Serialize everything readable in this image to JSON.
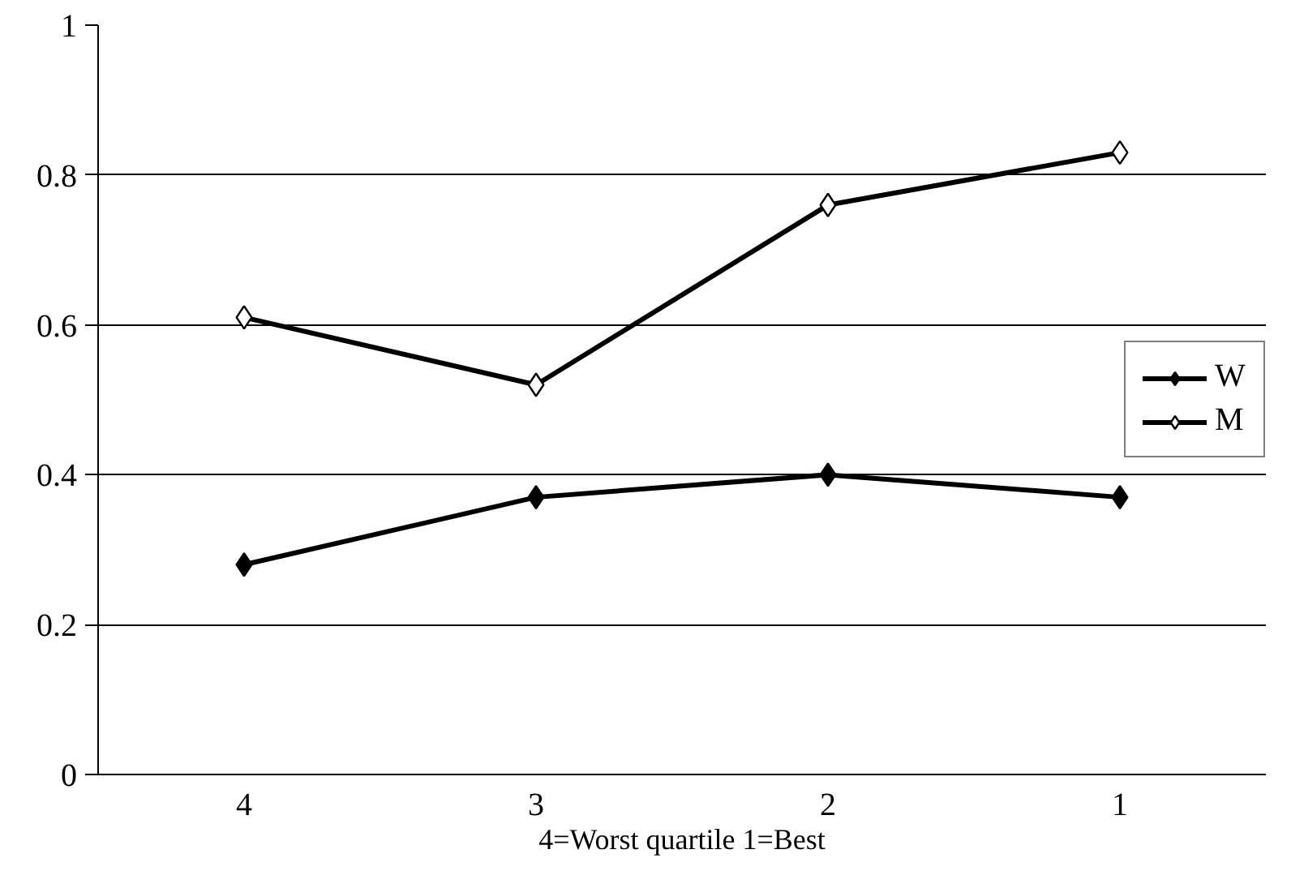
{
  "chart_data": {
    "type": "line",
    "xlabel": "4=Worst quartile 1=Best",
    "categories": [
      "4",
      "3",
      "2",
      "1"
    ],
    "series": [
      {
        "name": "W",
        "color": "#000000",
        "values": [
          0.28,
          0.37,
          0.4,
          0.37
        ]
      },
      {
        "name": "M",
        "color": "#000000",
        "values": [
          0.61,
          0.52,
          0.76,
          0.83
        ]
      }
    ],
    "ylim": [
      0,
      1
    ],
    "yticks": [
      0,
      0.2,
      0.4,
      0.6,
      0.8,
      1
    ],
    "grid": "y",
    "legend": "right",
    "marker": "diamond",
    "line_style": "solid"
  }
}
